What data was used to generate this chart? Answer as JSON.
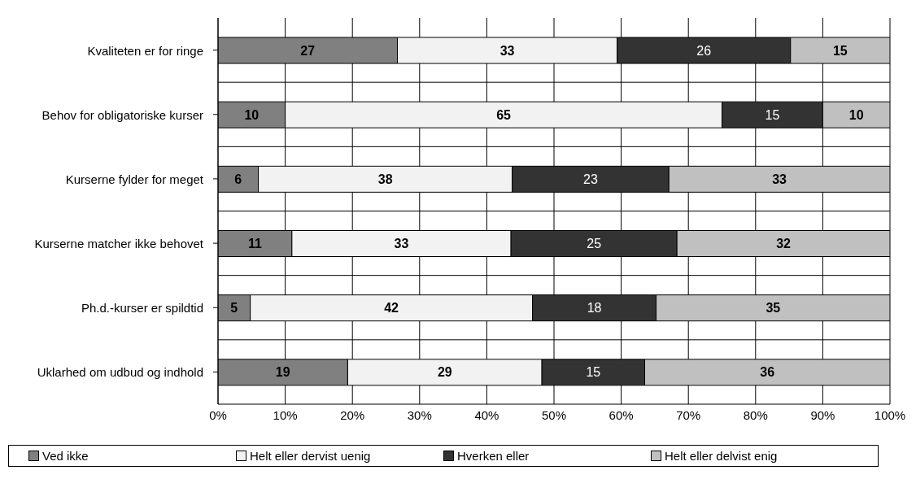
{
  "chart_data": {
    "type": "bar",
    "orientation": "horizontal",
    "stacked": true,
    "categories": [
      "Kvaliteten er for ringe",
      "Behov for obligatoriske kurser",
      "Kurserne fylder for meget",
      "Kurserne matcher ikke behovet",
      "Ph.d.-kurser er spildtid",
      "Uklarhed om udbud og indhold"
    ],
    "series": [
      {
        "name": "Ved ikke",
        "color": "#808080",
        "values": [
          26.7,
          10,
          6,
          11,
          4.8,
          19.3
        ],
        "value_labels": [
          "27",
          "10",
          "6",
          "11",
          "5",
          "19"
        ]
      },
      {
        "name": "Helt eller dervist uenig",
        "color": "#f2f2f2",
        "values": [
          32.7,
          65,
          37.8,
          32.6,
          42,
          28.9
        ],
        "value_labels": [
          "33",
          "65",
          "38",
          "33",
          "42",
          "29"
        ]
      },
      {
        "name": "Hverken eller",
        "color": "#333333",
        "values": [
          25.8,
          15,
          23.3,
          24.7,
          18.4,
          15.3
        ],
        "value_labels": [
          "26",
          "15",
          "23",
          "25",
          "18",
          "15"
        ]
      },
      {
        "name": "Helt eller delvist enig",
        "color": "#c0c0c0",
        "values": [
          14.8,
          10,
          32.9,
          31.7,
          34.8,
          36.5
        ],
        "value_labels": [
          "15",
          "10",
          "33",
          "32",
          "35",
          "36"
        ]
      }
    ],
    "xlim": [
      0,
      100
    ],
    "xticks": [
      {
        "value": 0,
        "label": "0%"
      },
      {
        "value": 10,
        "label": "10%"
      },
      {
        "value": 20,
        "label": "20%"
      },
      {
        "value": 30,
        "label": "30%"
      },
      {
        "value": 40,
        "label": "40%"
      },
      {
        "value": 50,
        "label": "50%"
      },
      {
        "value": 60,
        "label": "60%"
      },
      {
        "value": 70,
        "label": "70%"
      },
      {
        "value": 80,
        "label": "80%"
      },
      {
        "value": 90,
        "label": "90%"
      },
      {
        "value": 100,
        "label": "100%"
      }
    ],
    "grid": true,
    "legend": "bottom"
  }
}
